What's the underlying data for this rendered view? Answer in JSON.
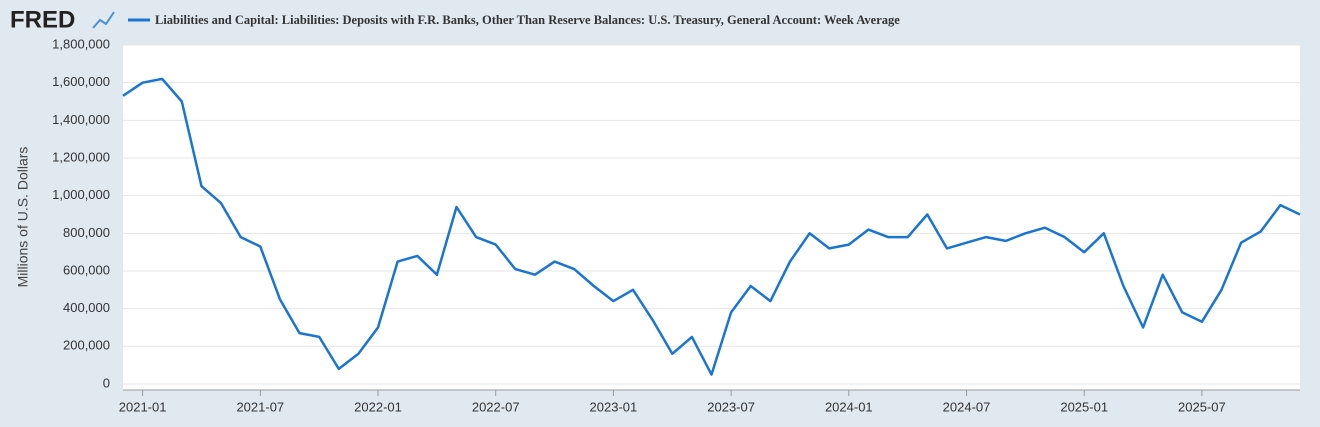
{
  "logo": "FRED",
  "chart_data": {
    "type": "line",
    "ylabel": "Millions of U.S. Dollars",
    "xlim": [
      "2020-12",
      "2025-12"
    ],
    "xticks": [
      "2021-01",
      "2021-07",
      "2022-01",
      "2022-07",
      "2023-01",
      "2023-07",
      "2024-01",
      "2024-07",
      "2025-01",
      "2025-07"
    ],
    "ylim": [
      -32000,
      1800000
    ],
    "yticks": [
      0,
      {
        "value": 200000,
        "label": "200,000"
      },
      {
        "value": 400000,
        "label": "400,000"
      },
      {
        "value": 600000,
        "label": "600,000"
      },
      {
        "value": 800000,
        "label": "800,000"
      },
      {
        "value": 1000000,
        "label": "1,000,000"
      },
      {
        "value": 1200000,
        "label": "1,200,000"
      },
      {
        "value": 1400000,
        "label": "1,400,000"
      },
      {
        "value": 1600000,
        "label": "1,600,000"
      },
      {
        "value": 1800000,
        "label": "1,800,000"
      }
    ],
    "grid": true,
    "x": [
      "2020-12",
      "2021-01",
      "2021-02",
      "2021-03",
      "2021-04",
      "2021-05",
      "2021-06",
      "2021-07",
      "2021-08",
      "2021-09",
      "2021-10",
      "2021-11",
      "2021-12",
      "2022-01",
      "2022-02",
      "2022-03",
      "2022-04",
      "2022-05",
      "2022-06",
      "2022-07",
      "2022-08",
      "2022-09",
      "2022-10",
      "2022-11",
      "2022-12",
      "2023-01",
      "2023-02",
      "2023-03",
      "2023-04",
      "2023-05",
      "2023-06",
      "2023-07",
      "2023-08",
      "2023-09",
      "2023-10",
      "2023-11",
      "2023-12",
      "2024-01",
      "2024-02",
      "2024-03",
      "2024-04",
      "2024-05",
      "2024-06",
      "2024-07",
      "2024-08",
      "2024-09",
      "2024-10",
      "2024-11",
      "2024-12",
      "2025-01",
      "2025-02",
      "2025-03",
      "2025-04",
      "2025-05",
      "2025-06",
      "2025-07",
      "2025-08",
      "2025-09",
      "2025-10",
      "2025-11",
      "2025-12"
    ],
    "series": [
      {
        "name": "Liabilities and Capital: Liabilities: Deposits with F.R. Banks, Other Than Reserve Balances: U.S. Treasury, General Account: Week Average",
        "color": "#1a75d2",
        "values": [
          1530000,
          1600000,
          1620000,
          1500000,
          1050000,
          960000,
          780000,
          730000,
          450000,
          270000,
          250000,
          80000,
          160000,
          300000,
          650000,
          680000,
          580000,
          940000,
          780000,
          740000,
          610000,
          580000,
          650000,
          610000,
          520000,
          440000,
          500000,
          340000,
          160000,
          250000,
          50000,
          380000,
          520000,
          440000,
          650000,
          800000,
          720000,
          740000,
          820000,
          780000,
          780000,
          900000,
          720000,
          750000,
          780000,
          760000,
          800000,
          830000,
          780000,
          700000,
          800000,
          520000,
          300000,
          580000,
          380000,
          330000,
          500000,
          750000,
          810000,
          950000,
          900000
        ]
      }
    ]
  }
}
